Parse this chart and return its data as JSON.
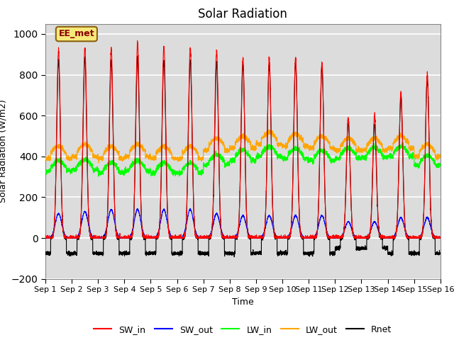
{
  "title": "Solar Radiation",
  "xlabel": "Time",
  "ylabel": "Solar Radiation (W/m2)",
  "ylim": [
    -200,
    1050
  ],
  "xlim": [
    0,
    15
  ],
  "xtick_labels": [
    "Sep 1",
    "Sep 2",
    "Sep 3",
    "Sep 4",
    "Sep 5",
    "Sep 6",
    "Sep 7",
    "Sep 8",
    "Sep 9",
    "Sep 10",
    "Sep 11",
    "Sep 12",
    "Sep 13",
    "Sep 14",
    "Sep 15",
    "Sep 16"
  ],
  "legend_entries": [
    "SW_in",
    "SW_out",
    "LW_in",
    "LW_out",
    "Rnet"
  ],
  "legend_colors": [
    "red",
    "blue",
    "green",
    "orange",
    "black"
  ],
  "annotation_text": "EE_met",
  "annotation_bg": "#f5e97a",
  "annotation_border": "#8B6010",
  "background_color": "#dcdcdc",
  "grid_color": "white",
  "title_fontsize": 12,
  "axis_fontsize": 9,
  "tick_fontsize": 8,
  "num_days": 15,
  "points_per_day": 288,
  "SW_in_day_peak": [
    920,
    930,
    930,
    960,
    940,
    930,
    920,
    880,
    880,
    880,
    860,
    590,
    600,
    710,
    800
  ],
  "SW_out_peak": [
    120,
    130,
    140,
    140,
    140,
    140,
    120,
    110,
    110,
    110,
    110,
    80,
    80,
    100,
    100
  ],
  "LW_in_base": [
    330,
    335,
    320,
    330,
    320,
    320,
    360,
    380,
    400,
    390,
    380,
    390,
    395,
    400,
    355
  ],
  "LW_out_base": [
    390,
    400,
    390,
    400,
    390,
    390,
    430,
    440,
    460,
    450,
    440,
    430,
    430,
    440,
    400
  ],
  "Rnet_day_peak": [
    870,
    880,
    870,
    880,
    870,
    870,
    860,
    850,
    850,
    860,
    840,
    570,
    560,
    690,
    780
  ],
  "Rnet_night": [
    -75,
    -75,
    -75,
    -75,
    -75,
    -75,
    -75,
    -75,
    -75,
    -75,
    -75,
    -50,
    -50,
    -75,
    -75
  ]
}
